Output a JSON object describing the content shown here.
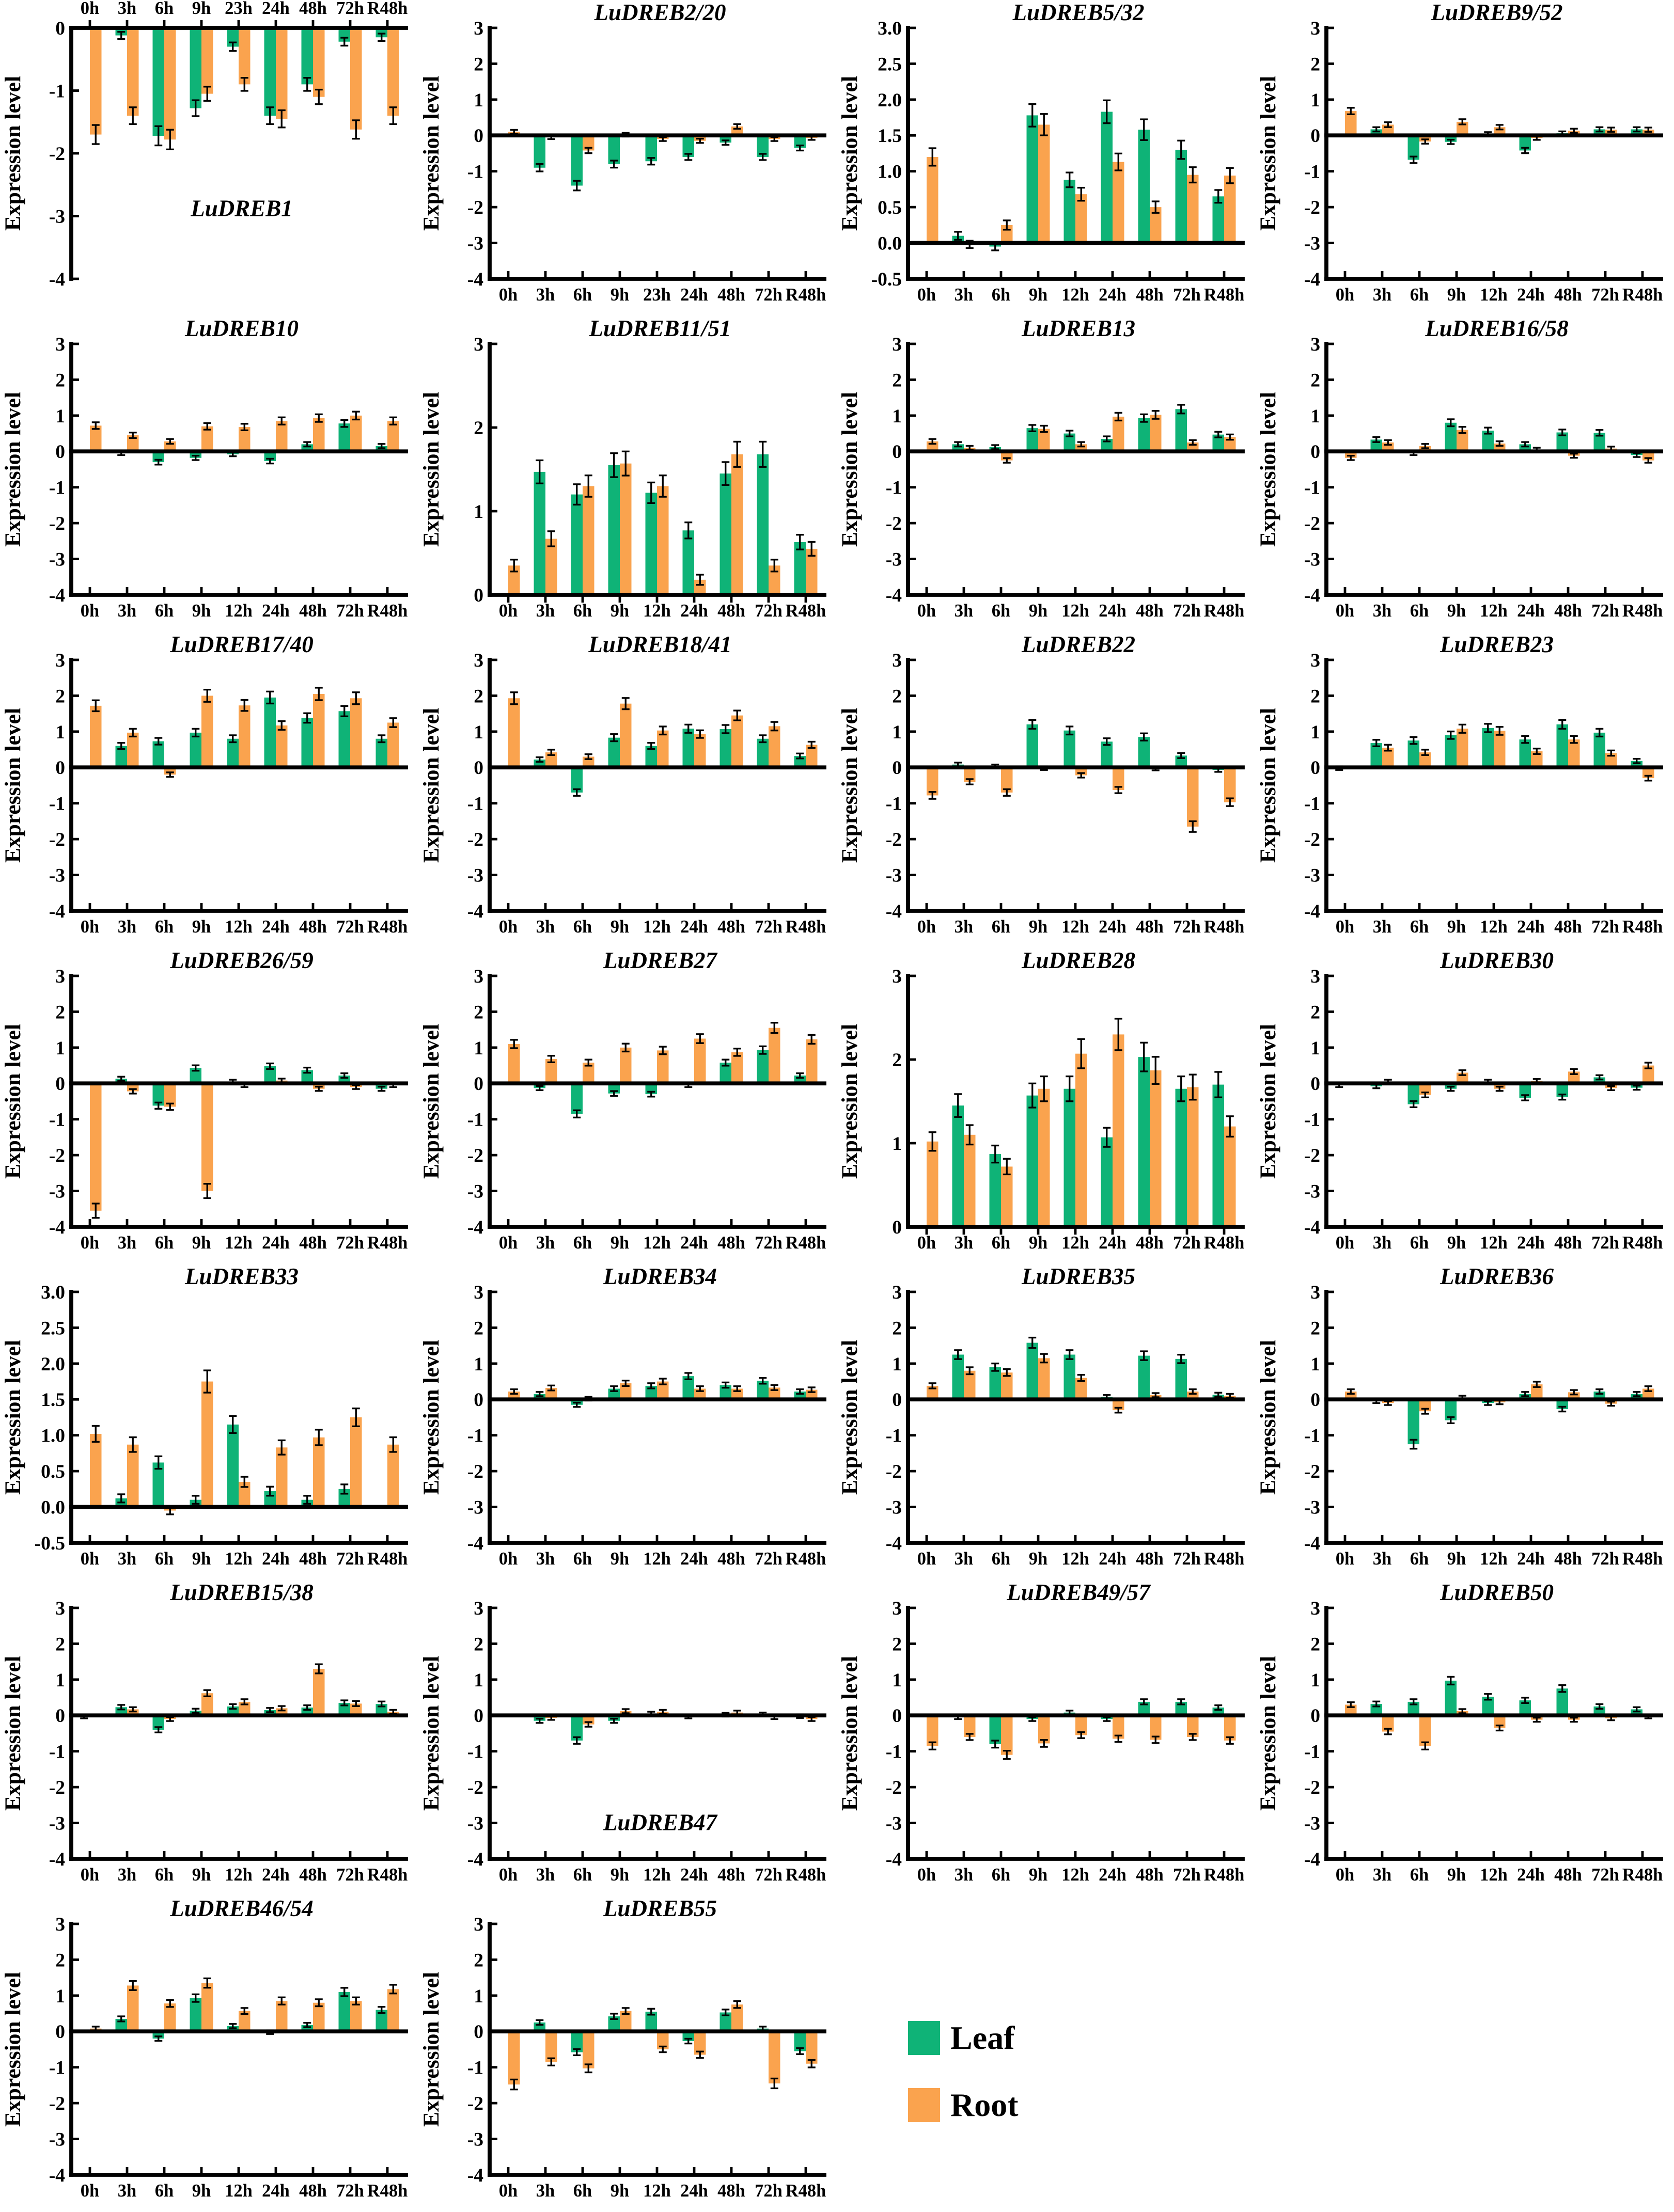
{
  "figure": {
    "ylabel": "Expression level",
    "legend": {
      "leaf_label": "Leaf",
      "root_label": "Root"
    },
    "colors": {
      "leaf": "#0fb377",
      "root": "#faa34e",
      "axis": "#000000"
    },
    "categories": {
      "std": [
        "0h",
        "3h",
        "6h",
        "9h",
        "12h",
        "24h",
        "48h",
        "72h",
        "R48h"
      ],
      "alt23": [
        "0h",
        "3h",
        "6h",
        "9h",
        "23h",
        "24h",
        "48h",
        "72h",
        "R48h"
      ]
    }
  },
  "chart_data": [
    {
      "type": "bar",
      "title": "LuDREB1",
      "title_pos": "bottom",
      "title_y": -3.0,
      "xlabel_pos": "top",
      "cats": "alt23",
      "ylim": [
        -4,
        0
      ],
      "yticks": [
        0,
        -1,
        -2,
        -3,
        -4
      ],
      "ydec": 0,
      "series": {
        "leaf": [
          0,
          -0.12,
          -1.72,
          -1.28,
          -0.3,
          -1.4,
          -0.9,
          -0.22,
          -0.15
        ],
        "root": [
          -1.7,
          -1.4,
          -1.78,
          -1.05,
          -0.9,
          -1.45,
          -1.1,
          -1.62,
          -1.4
        ]
      }
    },
    {
      "type": "bar",
      "title": "LuDREB2/20",
      "title_pos": "top",
      "xlabel_pos": "bottom",
      "cats": "alt23",
      "ylim": [
        -4,
        3
      ],
      "yticks": [
        3,
        2,
        1,
        0,
        -1,
        -2,
        -3,
        -4
      ],
      "ydec": 0,
      "series": {
        "leaf": [
          0,
          -0.9,
          -1.4,
          -0.8,
          -0.72,
          -0.6,
          -0.2,
          -0.6,
          -0.35
        ],
        "root": [
          0.1,
          -0.05,
          -0.42,
          0.02,
          -0.1,
          -0.15,
          0.25,
          -0.1,
          -0.07
        ]
      }
    },
    {
      "type": "bar",
      "title": "LuDREB5/32",
      "title_pos": "top",
      "xlabel_pos": "bottom",
      "cats": "std",
      "ylim": [
        -0.5,
        3
      ],
      "yticks": [
        3,
        2.5,
        2,
        1.5,
        1,
        0.5,
        0,
        -0.5
      ],
      "ydec": 1,
      "series": {
        "leaf": [
          0,
          0.1,
          -0.05,
          1.78,
          0.88,
          1.83,
          1.58,
          1.3,
          0.65
        ],
        "root": [
          1.2,
          -0.02,
          0.25,
          1.65,
          0.68,
          1.13,
          0.5,
          0.95,
          0.94
        ]
      }
    },
    {
      "type": "bar",
      "title": "LuDREB9/52",
      "title_pos": "top",
      "xlabel_pos": "bottom",
      "cats": "std",
      "ylim": [
        -4,
        3
      ],
      "yticks": [
        3,
        2,
        1,
        0,
        -1,
        -2,
        -3,
        -4
      ],
      "ydec": 0,
      "series": {
        "leaf": [
          0,
          0.17,
          -0.68,
          -0.18,
          0.04,
          -0.42,
          0.06,
          0.17,
          0.17
        ],
        "root": [
          0.68,
          0.3,
          -0.17,
          0.38,
          0.23,
          -0.07,
          0.13,
          0.16,
          0.16
        ]
      }
    },
    {
      "type": "bar",
      "title": "LuDREB10",
      "title_pos": "top",
      "xlabel_pos": "bottom",
      "cats": "std",
      "ylim": [
        -4,
        3
      ],
      "yticks": [
        3,
        2,
        1,
        0,
        -1,
        -2,
        -3,
        -4
      ],
      "ydec": 0,
      "series": {
        "leaf": [
          0,
          -0.05,
          -0.3,
          -0.18,
          -0.08,
          -0.27,
          0.2,
          0.78,
          0.15
        ],
        "root": [
          0.72,
          0.45,
          0.28,
          0.7,
          0.68,
          0.85,
          0.93,
          1.0,
          0.85
        ]
      }
    },
    {
      "type": "bar",
      "title": "LuDREB11/51",
      "title_pos": "top",
      "xlabel_pos": "bottom",
      "cats": "std",
      "ylim": [
        0,
        3
      ],
      "yticks": [
        3,
        2,
        1,
        0
      ],
      "ydec": 0,
      "series": {
        "leaf": [
          0,
          1.47,
          1.2,
          1.55,
          1.22,
          0.77,
          1.45,
          1.68,
          0.63
        ],
        "root": [
          0.35,
          0.67,
          1.3,
          1.57,
          1.3,
          0.18,
          1.68,
          0.35,
          0.55
        ]
      }
    },
    {
      "type": "bar",
      "title": "LuDREB13",
      "title_pos": "top",
      "xlabel_pos": "bottom",
      "cats": "std",
      "ylim": [
        -4,
        3
      ],
      "yticks": [
        3,
        2,
        1,
        0,
        -1,
        -2,
        -3,
        -4
      ],
      "ydec": 0,
      "series": {
        "leaf": [
          0,
          0.2,
          0.12,
          0.65,
          0.5,
          0.35,
          0.93,
          1.18,
          0.47
        ],
        "root": [
          0.28,
          0.1,
          -0.25,
          0.63,
          0.2,
          0.97,
          1.02,
          0.25,
          0.4
        ]
      }
    },
    {
      "type": "bar",
      "title": "LuDREB16/58",
      "title_pos": "top",
      "xlabel_pos": "bottom",
      "cats": "std",
      "ylim": [
        -4,
        3
      ],
      "yticks": [
        3,
        2,
        1,
        0,
        -1,
        -2,
        -3,
        -4
      ],
      "ydec": 0,
      "series": {
        "leaf": [
          0,
          0.33,
          -0.05,
          0.8,
          0.58,
          0.2,
          0.53,
          0.52,
          -0.1
        ],
        "root": [
          -0.18,
          0.25,
          0.15,
          0.6,
          0.22,
          0.05,
          -0.12,
          0.08,
          -0.25
        ]
      }
    },
    {
      "type": "bar",
      "title": "LuDREB17/40",
      "title_pos": "top",
      "xlabel_pos": "bottom",
      "cats": "std",
      "ylim": [
        -4,
        3
      ],
      "yticks": [
        3,
        2,
        1,
        0,
        -1,
        -2,
        -3,
        -4
      ],
      "ydec": 0,
      "series": {
        "leaf": [
          0,
          0.6,
          0.73,
          0.97,
          0.8,
          1.95,
          1.38,
          1.57,
          0.8
        ],
        "root": [
          1.72,
          0.97,
          -0.2,
          2.0,
          1.73,
          1.17,
          2.05,
          1.93,
          1.25
        ]
      }
    },
    {
      "type": "bar",
      "title": "LuDREB18/41",
      "title_pos": "top",
      "xlabel_pos": "bottom",
      "cats": "std",
      "ylim": [
        -4,
        3
      ],
      "yticks": [
        3,
        2,
        1,
        0,
        -1,
        -2,
        -3,
        -4
      ],
      "ydec": 0,
      "series": {
        "leaf": [
          0,
          0.22,
          -0.7,
          0.83,
          0.6,
          1.08,
          1.07,
          0.8,
          0.32
        ],
        "root": [
          1.93,
          0.42,
          0.3,
          1.78,
          1.03,
          0.93,
          1.45,
          1.15,
          0.63
        ]
      }
    },
    {
      "type": "bar",
      "title": "LuDREB22",
      "title_pos": "top",
      "xlabel_pos": "bottom",
      "cats": "std",
      "ylim": [
        -4,
        3
      ],
      "yticks": [
        3,
        2,
        1,
        0,
        -1,
        -2,
        -3,
        -4
      ],
      "ydec": 0,
      "series": {
        "leaf": [
          0,
          0.08,
          0.03,
          1.2,
          1.03,
          0.72,
          0.85,
          0.33,
          -0.07
        ],
        "root": [
          -0.78,
          -0.4,
          -0.7,
          -0.02,
          -0.22,
          -0.63,
          -0.03,
          -1.65,
          -0.97
        ]
      }
    },
    {
      "type": "bar",
      "title": "LuDREB23",
      "title_pos": "top",
      "xlabel_pos": "bottom",
      "cats": "std",
      "ylim": [
        -4,
        3
      ],
      "yticks": [
        3,
        2,
        1,
        0,
        -1,
        -2,
        -3,
        -4
      ],
      "ydec": 0,
      "series": {
        "leaf": [
          -0.02,
          0.68,
          0.75,
          0.9,
          1.1,
          0.78,
          1.2,
          0.97,
          0.18
        ],
        "root": [
          0,
          0.55,
          0.42,
          1.08,
          1.02,
          0.45,
          0.78,
          0.4,
          -0.3
        ]
      }
    },
    {
      "type": "bar",
      "title": "LuDREB26/59",
      "title_pos": "top",
      "xlabel_pos": "bottom",
      "cats": "std",
      "ylim": [
        -4,
        3
      ],
      "yticks": [
        3,
        2,
        1,
        0,
        -1,
        -2,
        -3,
        -4
      ],
      "ydec": 0,
      "series": {
        "leaf": [
          0,
          0.13,
          -0.62,
          0.43,
          0.05,
          0.48,
          0.37,
          0.22,
          -0.15
        ],
        "root": [
          -3.55,
          -0.22,
          -0.65,
          -3.0,
          -0.05,
          0.08,
          -0.15,
          -0.1,
          -0.05
        ]
      }
    },
    {
      "type": "bar",
      "title": "LuDREB27",
      "title_pos": "top",
      "xlabel_pos": "bottom",
      "cats": "std",
      "ylim": [
        -4,
        3
      ],
      "yticks": [
        3,
        2,
        1,
        0,
        -1,
        -2,
        -3,
        -4
      ],
      "ydec": 0,
      "series": {
        "leaf": [
          0,
          -0.13,
          -0.85,
          -0.28,
          -0.3,
          -0.05,
          0.58,
          0.93,
          0.22
        ],
        "root": [
          1.1,
          0.68,
          0.58,
          1.0,
          0.92,
          1.25,
          0.87,
          1.55,
          1.23
        ]
      }
    },
    {
      "type": "bar",
      "title": "LuDREB28",
      "title_pos": "top",
      "xlabel_pos": "bottom",
      "cats": "std",
      "ylim": [
        0,
        3
      ],
      "yticks": [
        3,
        2,
        1,
        0
      ],
      "ydec": 0,
      "series": {
        "leaf": [
          0,
          1.45,
          0.87,
          1.57,
          1.65,
          1.07,
          2.03,
          1.65,
          1.7
        ],
        "root": [
          1.02,
          1.1,
          0.72,
          1.65,
          2.07,
          2.3,
          1.87,
          1.67,
          1.2
        ]
      }
    },
    {
      "type": "bar",
      "title": "LuDREB30",
      "title_pos": "top",
      "xlabel_pos": "bottom",
      "cats": "std",
      "ylim": [
        -4,
        3
      ],
      "yticks": [
        3,
        2,
        1,
        0,
        -1,
        -2,
        -3,
        -4
      ],
      "ydec": 0,
      "series": {
        "leaf": [
          -0.05,
          -0.08,
          -0.58,
          -0.15,
          0.05,
          -0.4,
          -0.38,
          0.17,
          -0.12
        ],
        "root": [
          0,
          0.05,
          -0.32,
          0.3,
          -0.15,
          0.07,
          0.33,
          -0.13,
          0.5
        ]
      }
    },
    {
      "type": "bar",
      "title": "LuDREB33",
      "title_pos": "top",
      "xlabel_pos": "bottom",
      "cats": "std",
      "ylim": [
        -0.5,
        3
      ],
      "yticks": [
        3,
        2.5,
        2,
        1.5,
        1,
        0.5,
        0,
        -0.5
      ],
      "ydec": 1,
      "series": {
        "leaf": [
          0,
          0.12,
          0.62,
          0.1,
          1.15,
          0.22,
          0.1,
          0.25,
          0
        ],
        "root": [
          1.02,
          0.87,
          -0.05,
          1.75,
          0.35,
          0.83,
          0.97,
          1.25,
          0.87
        ]
      }
    },
    {
      "type": "bar",
      "title": "LuDREB34",
      "title_pos": "top",
      "xlabel_pos": "bottom",
      "cats": "std",
      "ylim": [
        -4,
        3
      ],
      "yticks": [
        3,
        2,
        1,
        0,
        -1,
        -2,
        -3,
        -4
      ],
      "ydec": 0,
      "series": {
        "leaf": [
          0,
          0.15,
          -0.15,
          0.3,
          0.38,
          0.65,
          0.4,
          0.52,
          0.22
        ],
        "root": [
          0.22,
          0.32,
          0.02,
          0.45,
          0.5,
          0.3,
          0.3,
          0.33,
          0.27
        ]
      }
    },
    {
      "type": "bar",
      "title": "LuDREB35",
      "title_pos": "top",
      "xlabel_pos": "bottom",
      "cats": "std",
      "ylim": [
        -4,
        3
      ],
      "yticks": [
        3,
        2,
        1,
        0,
        -1,
        -2,
        -3,
        -4
      ],
      "ydec": 0,
      "series": {
        "leaf": [
          0,
          1.25,
          0.9,
          1.58,
          1.25,
          0.07,
          1.22,
          1.13,
          0.13
        ],
        "root": [
          0.38,
          0.8,
          0.75,
          1.15,
          0.6,
          -0.3,
          0.12,
          0.22,
          0.1
        ]
      }
    },
    {
      "type": "bar",
      "title": "LuDREB36",
      "title_pos": "top",
      "xlabel_pos": "bottom",
      "cats": "std",
      "ylim": [
        -4,
        3
      ],
      "yticks": [
        3,
        2,
        1,
        0,
        -1,
        -2,
        -3,
        -4
      ],
      "ydec": 0,
      "series": {
        "leaf": [
          0,
          -0.05,
          -1.25,
          -0.58,
          -0.1,
          0.15,
          -0.27,
          0.22,
          0.15
        ],
        "root": [
          0.22,
          -0.1,
          -0.33,
          0.05,
          -0.08,
          0.42,
          0.2,
          -0.12,
          0.3
        ]
      }
    },
    {
      "type": "bar",
      "title": "LuDREB15/38",
      "title_pos": "top",
      "xlabel_pos": "bottom",
      "cats": "std",
      "ylim": [
        -4,
        3
      ],
      "yticks": [
        3,
        2,
        1,
        0,
        -1,
        -2,
        -3,
        -4
      ],
      "ydec": 0,
      "series": {
        "leaf": [
          -0.03,
          0.23,
          -0.4,
          0.13,
          0.25,
          0.15,
          0.22,
          0.35,
          0.32
        ],
        "root": [
          0,
          0.17,
          -0.1,
          0.62,
          0.38,
          0.2,
          1.3,
          0.33,
          0.1
        ]
      }
    },
    {
      "type": "bar",
      "title": "LuDREB47",
      "title_pos": "bottom",
      "title_y": -3.2,
      "xlabel_pos": "bottom",
      "cats": "std",
      "ylim": [
        -4,
        3
      ],
      "yticks": [
        3,
        2,
        1,
        0,
        -1,
        -2,
        -3,
        -4
      ],
      "ydec": 0,
      "series": {
        "leaf": [
          0,
          -0.15,
          -0.7,
          -0.15,
          0.05,
          -0.03,
          0.02,
          0.03,
          -0.02
        ],
        "root": [
          0,
          -0.07,
          -0.25,
          0.12,
          0.1,
          0,
          0.08,
          -0.05,
          -0.1
        ]
      }
    },
    {
      "type": "bar",
      "title": "LuDREB49/57",
      "title_pos": "top",
      "xlabel_pos": "bottom",
      "cats": "std",
      "ylim": [
        -4,
        3
      ],
      "yticks": [
        3,
        2,
        1,
        0,
        -1,
        -2,
        -3,
        -4
      ],
      "ydec": 0,
      "series": {
        "leaf": [
          0,
          -0.05,
          -0.8,
          -0.1,
          0.08,
          -0.1,
          0.38,
          0.38,
          0.22
        ],
        "root": [
          -0.85,
          -0.6,
          -1.1,
          -0.78,
          -0.55,
          -0.65,
          -0.68,
          -0.6,
          -0.7
        ]
      }
    },
    {
      "type": "bar",
      "title": "LuDREB50",
      "title_pos": "top",
      "xlabel_pos": "bottom",
      "cats": "std",
      "ylim": [
        -4,
        3
      ],
      "yticks": [
        3,
        2,
        1,
        0,
        -1,
        -2,
        -3,
        -4
      ],
      "ydec": 0,
      "series": {
        "leaf": [
          0,
          0.32,
          0.38,
          0.97,
          0.52,
          0.42,
          0.75,
          0.25,
          0.17
        ],
        "root": [
          0.3,
          -0.45,
          -0.85,
          0.12,
          -0.35,
          -0.12,
          -0.12,
          -0.08,
          -0.03
        ]
      }
    },
    {
      "type": "bar",
      "title": "LuDREB46/54",
      "title_pos": "top",
      "xlabel_pos": "bottom",
      "cats": "std",
      "ylim": [
        -4,
        3
      ],
      "yticks": [
        3,
        2,
        1,
        0,
        -1,
        -2,
        -3,
        -4
      ],
      "ydec": 0,
      "series": {
        "leaf": [
          0,
          0.35,
          -0.2,
          0.93,
          0.15,
          -0.02,
          0.18,
          1.1,
          0.6
        ],
        "root": [
          0.08,
          1.28,
          0.78,
          1.35,
          0.57,
          0.85,
          0.8,
          0.85,
          1.18
        ]
      }
    },
    {
      "type": "bar",
      "title": "LuDREB55",
      "title_pos": "top",
      "xlabel_pos": "bottom",
      "cats": "std",
      "ylim": [
        -4,
        3
      ],
      "yticks": [
        3,
        2,
        1,
        0,
        -1,
        -2,
        -3,
        -4
      ],
      "ydec": 0,
      "series": {
        "leaf": [
          0,
          0.25,
          -0.58,
          0.42,
          0.55,
          -0.27,
          0.53,
          0.08,
          -0.55
        ],
        "root": [
          -1.48,
          -0.85,
          -1.03,
          0.57,
          -0.5,
          -0.65,
          0.75,
          -1.45,
          -0.9
        ]
      }
    }
  ]
}
